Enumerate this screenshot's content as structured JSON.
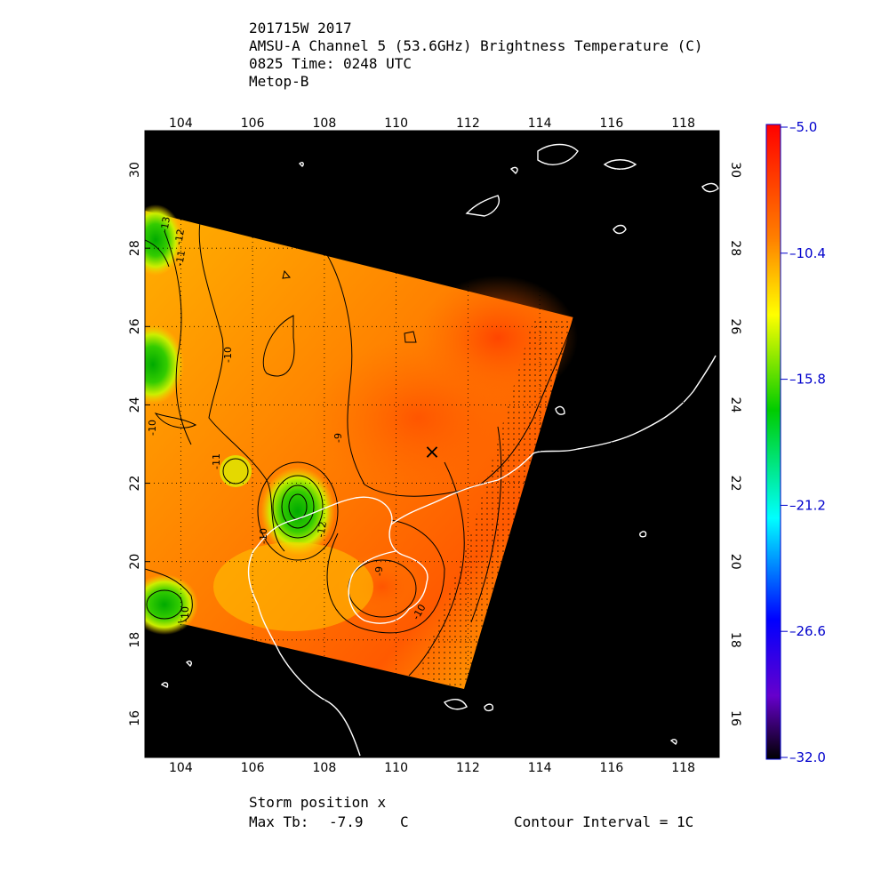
{
  "header": {
    "line1": "201715W 2017",
    "line2": "AMSU-A Channel 5 (53.6GHz) Brightness Temperature (C)",
    "line3": "0825 Time: 0248 UTC",
    "line4": "Metop-B"
  },
  "map": {
    "lon_ticks": [
      "104",
      "106",
      "108",
      "110",
      "112",
      "114",
      "116",
      "118"
    ],
    "lat_ticks": [
      "16",
      "18",
      "20",
      "22",
      "24",
      "26",
      "28",
      "30"
    ],
    "lon_range": [
      103,
      119
    ],
    "lat_range": [
      15,
      31
    ],
    "storm_marker": {
      "symbol": "×",
      "lon": 111.0,
      "lat": 22.8
    },
    "contour_labels": [
      "-13",
      "-12",
      "-11",
      "-10",
      "-9",
      "-11",
      "-10",
      "-12",
      "-10",
      "-10",
      "-9",
      "-10"
    ],
    "colors": {
      "background": "#000000",
      "coastline": "#ffffff",
      "contour": "#000000"
    }
  },
  "colorbar": {
    "ticks": [
      "-5.0",
      "-10.4",
      "-15.8",
      "-21.2",
      "-26.6",
      "-32.0"
    ],
    "stops": [
      "#ff0000",
      "#ff8000",
      "#ffff00",
      "#00cc00",
      "#00ffff",
      "#0000ff",
      "#6600cc",
      "#000000"
    ],
    "tick_color": "#0000cc"
  },
  "footer": {
    "storm_position": "Storm position x",
    "max_tb_label": "Max Tb:",
    "max_tb_value": "-7.9",
    "max_tb_unit": "C",
    "contour_interval": "Contour Interval = 1C"
  }
}
